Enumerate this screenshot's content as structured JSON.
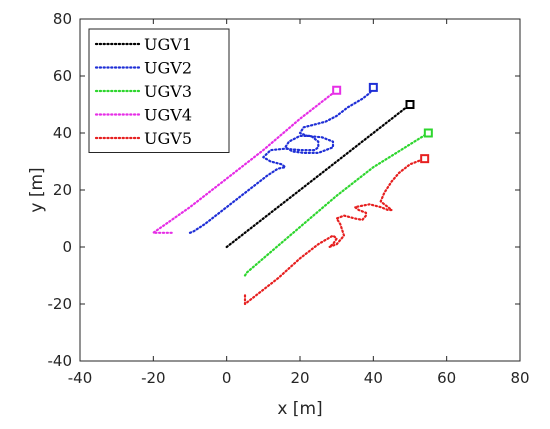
{
  "chart_data": {
    "type": "line",
    "xlabel": "x [m]",
    "ylabel": "y [m]",
    "xlim": [
      -40,
      80
    ],
    "ylim": [
      -40,
      80
    ],
    "xticks": [
      "-40",
      "-20",
      "0",
      "20",
      "40",
      "60",
      "80"
    ],
    "yticks": [
      "80",
      "60",
      "40",
      "20",
      "0",
      "-20",
      "-40"
    ],
    "grid": false,
    "legend_position": "top-left",
    "line_style": "dotted",
    "end_marker": "square",
    "series": [
      {
        "name": "UGV1",
        "color": "#000000",
        "points": [
          [
            0,
            0
          ],
          [
            10,
            10
          ],
          [
            20,
            20
          ],
          [
            30,
            30
          ],
          [
            40,
            40
          ],
          [
            50,
            50
          ]
        ]
      },
      {
        "name": "UGV2",
        "color": "#1f2fd6",
        "points": [
          [
            -10,
            5
          ],
          [
            -9,
            5.5
          ],
          [
            -6,
            8
          ],
          [
            0,
            14
          ],
          [
            6,
            20
          ],
          [
            11,
            25
          ],
          [
            14,
            27.5
          ],
          [
            16,
            28
          ],
          [
            15,
            29
          ],
          [
            12,
            30
          ],
          [
            10,
            31.5
          ],
          [
            12,
            34
          ],
          [
            16,
            34.5
          ],
          [
            20,
            34
          ],
          [
            24,
            34
          ],
          [
            25,
            35
          ],
          [
            25,
            37
          ],
          [
            23,
            39
          ],
          [
            20,
            39
          ],
          [
            17,
            37
          ],
          [
            16,
            35
          ],
          [
            18,
            33.5
          ],
          [
            21,
            33
          ],
          [
            25,
            33
          ],
          [
            27,
            34
          ],
          [
            29,
            35
          ],
          [
            29,
            37
          ],
          [
            26,
            38.5
          ],
          [
            22,
            39
          ],
          [
            20,
            40
          ],
          [
            21,
            42
          ],
          [
            24,
            43
          ],
          [
            27,
            44
          ],
          [
            30,
            46
          ],
          [
            33,
            49
          ],
          [
            37,
            52
          ],
          [
            39,
            54
          ],
          [
            40,
            56
          ]
        ]
      },
      {
        "name": "UGV3",
        "color": "#2ed62e",
        "points": [
          [
            5,
            -10
          ],
          [
            5.5,
            -9
          ],
          [
            10,
            -4
          ],
          [
            20,
            7
          ],
          [
            30,
            18
          ],
          [
            40,
            28
          ],
          [
            50,
            36
          ],
          [
            55,
            40
          ]
        ]
      },
      {
        "name": "UGV4",
        "color": "#e62ee6",
        "points": [
          [
            -15,
            5
          ],
          [
            -20,
            5
          ],
          [
            -10,
            14
          ],
          [
            0,
            24
          ],
          [
            10,
            34
          ],
          [
            20,
            45
          ],
          [
            30,
            55
          ]
        ]
      },
      {
        "name": "UGV5",
        "color": "#e62020",
        "points": [
          [
            5,
            -17
          ],
          [
            5,
            -20
          ],
          [
            8,
            -17
          ],
          [
            14,
            -11
          ],
          [
            20,
            -4
          ],
          [
            25,
            1
          ],
          [
            29,
            4
          ],
          [
            30,
            3
          ],
          [
            29,
            1
          ],
          [
            28,
            0
          ],
          [
            30,
            1
          ],
          [
            32,
            4
          ],
          [
            31,
            8
          ],
          [
            30,
            10
          ],
          [
            32,
            11
          ],
          [
            35,
            10
          ],
          [
            37,
            9.5
          ],
          [
            38,
            11
          ],
          [
            38,
            12
          ],
          [
            36,
            13
          ],
          [
            35,
            14
          ],
          [
            39,
            15
          ],
          [
            42,
            14
          ],
          [
            44,
            13
          ],
          [
            45,
            13
          ],
          [
            43,
            15
          ],
          [
            42,
            16
          ],
          [
            43,
            19
          ],
          [
            45,
            23
          ],
          [
            47,
            26
          ],
          [
            50,
            29
          ],
          [
            54,
            31
          ]
        ]
      }
    ]
  }
}
